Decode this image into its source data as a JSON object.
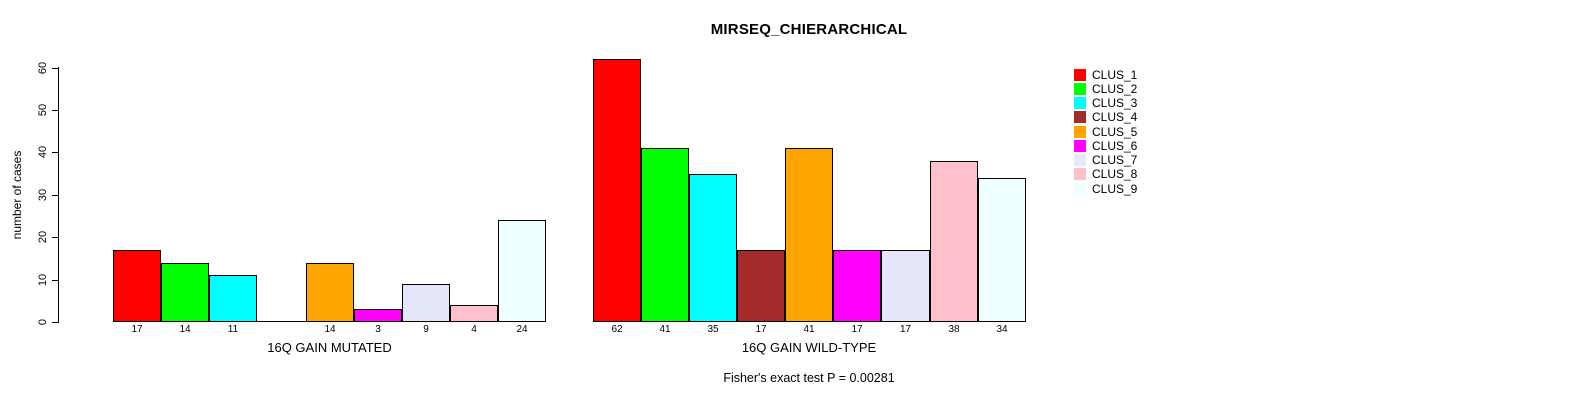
{
  "chart_data": {
    "type": "bar",
    "title": "MIRSEQ_CHIERARCHICAL",
    "ylabel": "number of cases",
    "ylim": [
      0,
      60
    ],
    "yticks": [
      0,
      10,
      20,
      30,
      40,
      50,
      60
    ],
    "grid": false,
    "legend_position": "right",
    "clusters": [
      "CLUS_1",
      "CLUS_2",
      "CLUS_3",
      "CLUS_4",
      "CLUS_5",
      "CLUS_6",
      "CLUS_7",
      "CLUS_8",
      "CLUS_9"
    ],
    "colors": [
      "#FF0000",
      "#00FF00",
      "#00FFFF",
      "#A52A2A",
      "#FFA500",
      "#FF00FF",
      "#E6E6FA",
      "#FFC0CB",
      "#F0FFFF"
    ],
    "bar_border_color": "#000000",
    "groups": [
      {
        "label": "16Q GAIN MUTATED",
        "values": [
          17,
          14,
          11,
          0,
          14,
          3,
          9,
          4,
          24
        ],
        "bar_labels": [
          "17",
          "14",
          "11",
          "",
          "14",
          "3",
          "9",
          "4",
          "24"
        ]
      },
      {
        "label": "16Q GAIN WILD-TYPE",
        "values": [
          62,
          41,
          35,
          17,
          41,
          17,
          17,
          38,
          34
        ],
        "bar_labels": [
          "62",
          "41",
          "35",
          "17",
          "41",
          "17",
          "17",
          "38",
          "34"
        ]
      }
    ],
    "footnote": "Fisher's exact test P = 0.00281"
  }
}
